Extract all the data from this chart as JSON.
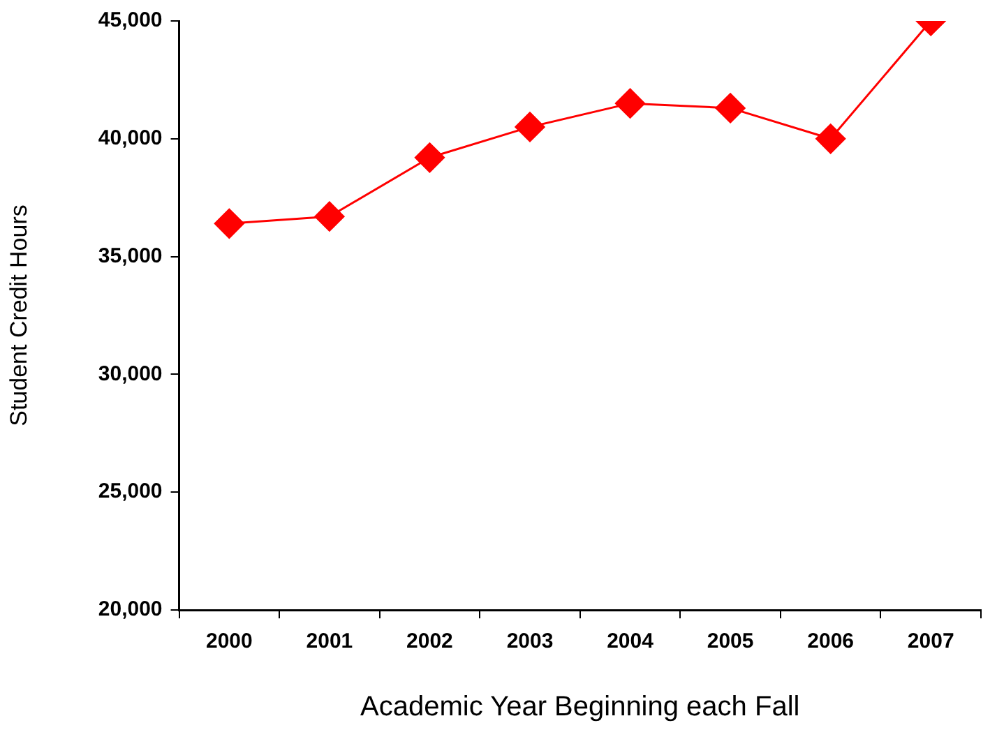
{
  "chart_data": {
    "type": "line",
    "xlabel": "Academic Year Beginning each Fall",
    "ylabel": "Student Credit Hours",
    "categories": [
      "2000",
      "2001",
      "2002",
      "2003",
      "2004",
      "2005",
      "2006",
      "2007"
    ],
    "series": [
      {
        "color": "#ff0000",
        "values": [
          36400,
          36700,
          39200,
          40500,
          41500,
          41300,
          40000,
          45000
        ]
      }
    ],
    "ylim": [
      20000,
      45000
    ],
    "yticks": [
      {
        "value": 20000,
        "label": "20,000"
      },
      {
        "value": 25000,
        "label": "25,000"
      },
      {
        "value": 30000,
        "label": "30,000"
      },
      {
        "value": 35000,
        "label": "35,000"
      },
      {
        "value": 40000,
        "label": "40,000"
      },
      {
        "value": 45000,
        "label": "45,000"
      }
    ],
    "marker": "diamond",
    "line_style": "solid",
    "grid": false,
    "legend": false
  }
}
